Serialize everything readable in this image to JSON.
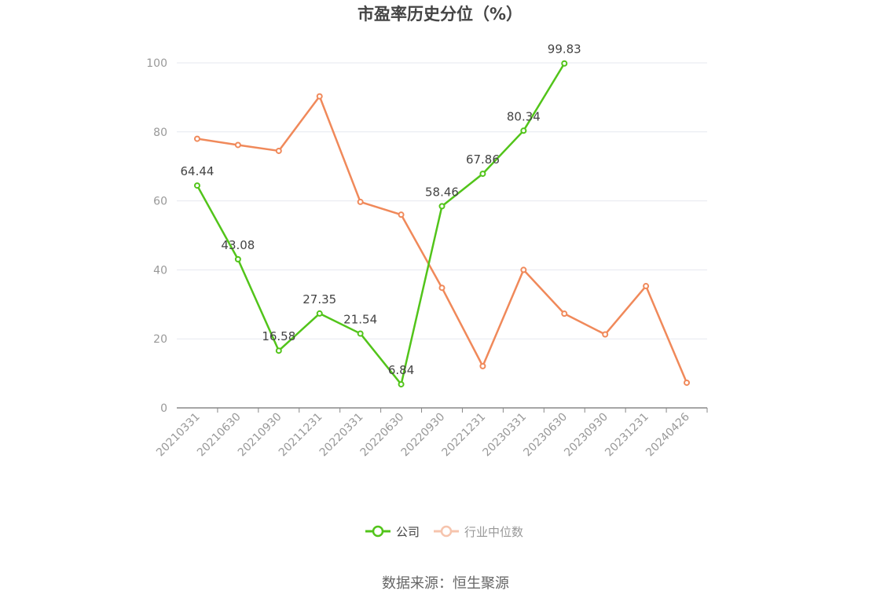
{
  "chart_data": {
    "type": "line",
    "title": "市盈率历史分位（%）",
    "categories": [
      "20210331",
      "20210630",
      "20210930",
      "20211231",
      "20220331",
      "20220630",
      "20220930",
      "20221231",
      "20230331",
      "20230630",
      "20230930",
      "20231231",
      "20240426"
    ],
    "series": [
      {
        "name": "公司",
        "color": "#52c41a",
        "values": [
          64.44,
          43.08,
          16.58,
          27.35,
          21.54,
          6.84,
          58.46,
          67.86,
          80.34,
          99.83,
          null,
          null,
          null
        ],
        "labels": [
          "64.44",
          "43.08",
          "16.58",
          "27.35",
          "21.54",
          "6.84",
          "58.46",
          "67.86",
          "80.34",
          "99.83",
          null,
          null,
          null
        ]
      },
      {
        "name": "行业中位数",
        "color": "#f0895a",
        "values": [
          78.0,
          76.2,
          74.5,
          90.3,
          59.7,
          56.0,
          34.8,
          12.1,
          40.0,
          27.3,
          21.3,
          35.3,
          7.3
        ]
      }
    ],
    "yticks": [
      "0",
      "20",
      "40",
      "60",
      "80",
      "100"
    ],
    "ylim": [
      0,
      100
    ],
    "grid": true,
    "legend_position": "bottom"
  },
  "source_text": "数据来源：恒生聚源"
}
